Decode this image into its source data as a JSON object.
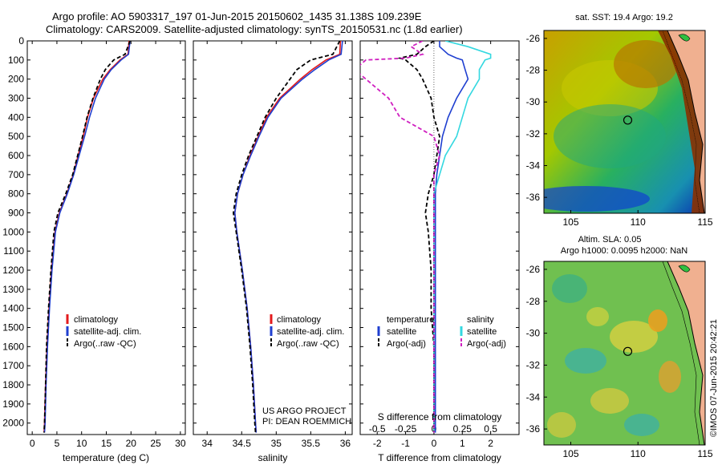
{
  "header": {
    "line1": "Argo profile: AO 5903317_197 01-Jun-2015 20150602_1435 31.138S 109.239E",
    "line2": "Climatology: CARS2009. Satellite-adjusted climatology: synTS_20150531.nc (1.8d earlier)"
  },
  "colors": {
    "climatology": "#e31a1c",
    "satellite": "#1f3fd0",
    "argo": "#000000",
    "sal_satellite": "#33d8e0",
    "sal_argo": "#d020c0"
  },
  "credit": {
    "project": "US ARGO PROJECT",
    "pi": "PI: DEAN ROEMMICH",
    "stamp": "©IMOS 07-Jun-2015 20:42:21"
  },
  "chart_data": [
    {
      "type": "line",
      "id": "temperature",
      "xlabel": "temperature (deg C)",
      "ylabel": "",
      "xlim": [
        -1,
        31
      ],
      "ylim": [
        2060,
        0
      ],
      "xticks": [
        0,
        5,
        10,
        15,
        20,
        25,
        30
      ],
      "xtick_labels": [
        "0",
        "5",
        "10",
        "15",
        "20",
        "25",
        "30"
      ],
      "yticks": [
        0,
        100,
        200,
        300,
        400,
        500,
        600,
        700,
        800,
        900,
        1000,
        1100,
        1200,
        1300,
        1400,
        1500,
        1600,
        1700,
        1800,
        1900,
        2000
      ],
      "ytick_labels": [
        "0",
        "100",
        "200",
        "300",
        "400",
        "500",
        "600",
        "700",
        "800",
        "900",
        "1000",
        "1100",
        "1200",
        "1300",
        "1400",
        "1500",
        "1600",
        "1700",
        "1800",
        "1900",
        "2000"
      ],
      "depth": [
        0,
        70,
        100,
        150,
        200,
        300,
        400,
        500,
        600,
        700,
        800,
        900,
        1000,
        1200,
        1400,
        1600,
        1800,
        2000,
        2050
      ],
      "legend": [
        "climatology",
        "satellite-adj. clim.",
        "Argo(..raw -QC)"
      ],
      "series": [
        {
          "name": "climatology",
          "values": [
            19.6,
            19.4,
            17.8,
            15.8,
            14.3,
            12.4,
            11.2,
            10.3,
            9.3,
            8.3,
            7.0,
            5.5,
            4.6,
            3.9,
            3.4,
            3.0,
            2.7,
            2.5,
            2.4
          ]
        },
        {
          "name": "satellite-adj. clim.",
          "values": [
            19.8,
            19.5,
            18.0,
            16.0,
            14.6,
            12.8,
            11.6,
            10.6,
            9.5,
            8.4,
            7.1,
            5.6,
            4.7,
            4.0,
            3.5,
            3.1,
            2.8,
            2.6,
            2.5
          ]
        },
        {
          "name": "Argo(..raw -QC)",
          "values": [
            19.8,
            18.8,
            16.5,
            14.8,
            13.8,
            12.3,
            11.1,
            10.2,
            9.2,
            8.2,
            6.8,
            5.2,
            4.4,
            3.8,
            3.3,
            2.9,
            2.7,
            2.5,
            2.4
          ]
        }
      ]
    },
    {
      "type": "line",
      "id": "salinity",
      "xlabel": "salinity",
      "xlim": [
        33.8,
        36.1
      ],
      "ylim": [
        2060,
        0
      ],
      "xticks": [
        34,
        34.5,
        35,
        35.5,
        36
      ],
      "xtick_labels": [
        "34",
        "34.5",
        "35",
        "35.5",
        "36"
      ],
      "depth": [
        0,
        70,
        100,
        150,
        200,
        300,
        400,
        500,
        600,
        700,
        800,
        900,
        1000,
        1200,
        1400,
        1600,
        1800,
        2000,
        2050
      ],
      "legend": [
        "climatology",
        "satellite-adj. clim.",
        "Argo(..raw -QC)"
      ],
      "series": [
        {
          "name": "climatology",
          "values": [
            35.93,
            35.92,
            35.72,
            35.52,
            35.35,
            35.05,
            34.86,
            34.74,
            34.62,
            34.52,
            34.44,
            34.4,
            34.43,
            34.51,
            34.58,
            34.63,
            34.67,
            34.7,
            34.71
          ]
        },
        {
          "name": "satellite-adj. clim.",
          "values": [
            35.96,
            35.94,
            35.76,
            35.56,
            35.38,
            35.07,
            34.88,
            34.75,
            34.63,
            34.52,
            34.44,
            34.4,
            34.43,
            34.51,
            34.58,
            34.63,
            34.67,
            34.7,
            34.71
          ]
        },
        {
          "name": "Argo(..raw -QC)",
          "values": [
            35.92,
            35.82,
            35.5,
            35.3,
            35.2,
            35.0,
            34.84,
            34.72,
            34.6,
            34.5,
            34.42,
            34.38,
            34.42,
            34.5,
            34.57,
            34.62,
            34.66,
            34.69,
            34.7
          ]
        }
      ]
    },
    {
      "type": "line",
      "id": "difference",
      "xlabel": "T difference from climatology",
      "xlabel_top": "S difference from climatology",
      "xlim": [
        -2.6,
        3.0
      ],
      "ylim": [
        2060,
        0
      ],
      "xticks": [
        -2,
        -1,
        0,
        1,
        2
      ],
      "xtick_labels": [
        "-2",
        "-1",
        "0",
        "1",
        "2"
      ],
      "top_ticks": [
        -0.5,
        -0.25,
        0,
        0.25,
        0.5
      ],
      "top_tick_labels": [
        "-0.5",
        "-0.25",
        "0",
        "0.25",
        "0.5"
      ],
      "top_tick_scale": 4,
      "depth": [
        0,
        30,
        70,
        90,
        100,
        150,
        200,
        300,
        400,
        500,
        600,
        700,
        800,
        900,
        1000,
        1200,
        1400,
        1600,
        1800,
        2000,
        2050
      ],
      "legend_temperature_title": "temperature",
      "legend_salinity_title": "salinity",
      "legend": [
        "satellite",
        "Argo(-adj)"
      ],
      "series": [
        {
          "name": "T satellite",
          "group": "temperature",
          "values": [
            0.2,
            0.2,
            0.5,
            0.8,
            1.0,
            1.1,
            1.2,
            0.8,
            0.5,
            0.3,
            0.2,
            0.1,
            0.05,
            0.05,
            0.05,
            0.05,
            0.05,
            0.05,
            0.05,
            0.05,
            0.05
          ]
        },
        {
          "name": "T Argo(-adj)",
          "group": "temperature",
          "values": [
            0.0,
            -0.3,
            -0.6,
            -1.2,
            -1.0,
            -0.6,
            -0.4,
            -0.1,
            0.0,
            0.2,
            0.1,
            0.0,
            -0.2,
            -0.3,
            -0.2,
            -0.1,
            -0.1,
            0.0,
            0.0,
            0.0,
            0.0
          ]
        },
        {
          "name": "S satellite",
          "group": "salinity",
          "values": [
            0.1,
            0.3,
            0.5,
            0.5,
            0.45,
            0.4,
            0.4,
            0.3,
            0.25,
            0.2,
            0.1,
            0.05,
            0.0,
            0.0,
            0.0,
            0.0,
            0.0,
            0.0,
            0.0,
            0.0,
            0.0
          ]
        },
        {
          "name": "S Argo(-adj)",
          "group": "salinity",
          "values": [
            -0.1,
            -0.2,
            -0.1,
            -0.25,
            -0.6,
            -0.7,
            -0.6,
            -0.4,
            -0.3,
            0.0,
            0.05,
            0.0,
            0.0,
            0.0,
            0.0,
            0.0,
            0.0,
            0.0,
            0.0,
            0.0,
            0.0
          ]
        }
      ]
    },
    {
      "type": "heatmap",
      "id": "sst_map",
      "title": "sat. SST: 19.4  Argo: 19.2",
      "xlim": [
        103,
        115
      ],
      "ylim": [
        -37,
        -25.5
      ],
      "xticks": [
        105,
        110,
        115
      ],
      "xtick_labels": [
        "105",
        "110",
        "115"
      ],
      "yticks": [
        -26,
        -28,
        -30,
        -32,
        -34,
        -36
      ],
      "ytick_labels": [
        "-26",
        "-28",
        "-30",
        "-32",
        "-34",
        "-36"
      ],
      "marker": [
        109.239,
        -31.138
      ]
    },
    {
      "type": "heatmap",
      "id": "sla_map",
      "title_line1": "Altim. SLA: 0.05",
      "title_line2": "Argo h1000: 0.0095 h2000: NaN",
      "xlim": [
        103,
        115
      ],
      "ylim": [
        -37,
        -25.5
      ],
      "xticks": [
        105,
        110,
        115
      ],
      "xtick_labels": [
        "105",
        "110",
        "115"
      ],
      "yticks": [
        -26,
        -28,
        -30,
        -32,
        -34,
        -36
      ],
      "ytick_labels": [
        "-26",
        "-28",
        "-30",
        "-32",
        "-34",
        "-36"
      ],
      "marker": [
        109.239,
        -31.138
      ]
    }
  ]
}
